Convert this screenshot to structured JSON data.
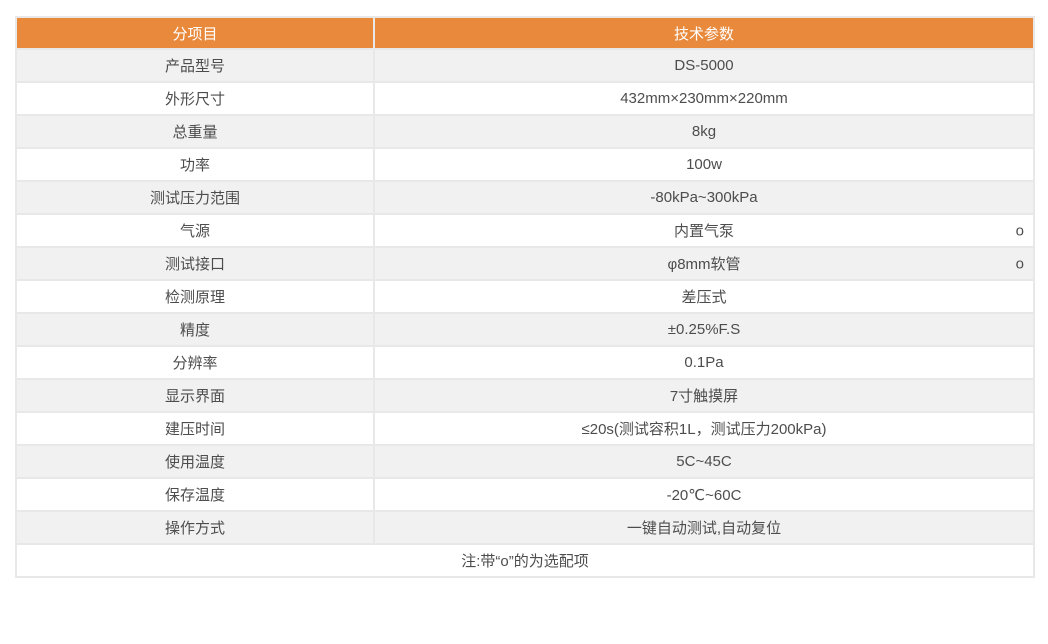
{
  "table": {
    "header": {
      "item_col": "分项目",
      "params_col": "技术参数"
    },
    "rows": [
      {
        "label": "产品型号",
        "value": "DS-5000"
      },
      {
        "label": "外形尺寸",
        "value": "432mm×230mm×220mm"
      },
      {
        "label": "总重量",
        "value": "8kg"
      },
      {
        "label": "功率",
        "value": "100w"
      },
      {
        "label": "测试压力范围",
        "value": "-80kPa~300kPa"
      },
      {
        "label": "气源",
        "value": "内置气泵",
        "optional_marker": "o"
      },
      {
        "label": "测试接口",
        "value": "φ8mm软管",
        "optional_marker": "o"
      },
      {
        "label": "检测原理",
        "value": "差压式"
      },
      {
        "label": "精度",
        "value": "±0.25%F.S"
      },
      {
        "label": "分辨率",
        "value": "0.1Pa"
      },
      {
        "label": "显示界面",
        "value": "7寸触摸屏"
      },
      {
        "label": "建压时间",
        "value": "≤20s(测试容积1L，测试压力200kPa)"
      },
      {
        "label": "使用温度",
        "value": "5C~45C"
      },
      {
        "label": "保存温度",
        "value": "-20℃~60C"
      },
      {
        "label": "操作方式",
        "value": "一键自动测试,自动复位"
      }
    ],
    "footnote": "注:带“o”的为选配项",
    "colors": {
      "header_bg": "#E8893C",
      "header_text": "#FFFFFF",
      "stripe_bg": "#F1F1F1",
      "row_bg": "#FFFFFF",
      "border": "#E8E8E8",
      "text": "#4D4D4D"
    }
  }
}
